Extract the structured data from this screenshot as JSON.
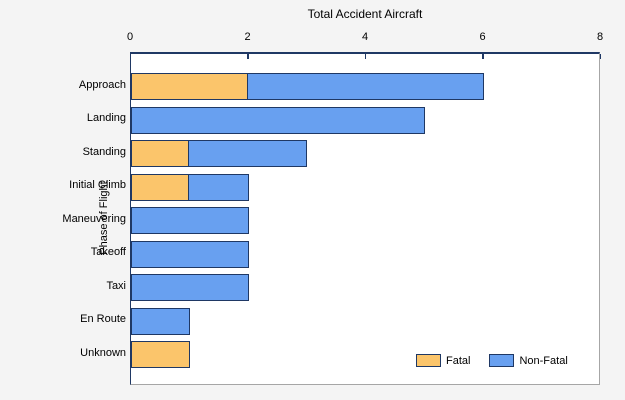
{
  "chart_data": {
    "type": "bar",
    "orientation": "horizontal",
    "stacked": true,
    "title": "Total Accident Aircraft",
    "xlabel": "Total Accident Aircraft",
    "ylabel": "Phase of Flight",
    "categories": [
      "Approach",
      "Landing",
      "Standing",
      "Initial Climb",
      "Maneuvering",
      "Takeoff",
      "Taxi",
      "En Route",
      "Unknown"
    ],
    "series": [
      {
        "name": "Fatal",
        "color": "#FBC56B",
        "values": [
          2,
          0,
          1,
          1,
          0,
          0,
          0,
          0,
          1
        ]
      },
      {
        "name": "Non-Fatal",
        "color": "#68A0F0",
        "values": [
          4,
          5,
          2,
          1,
          2,
          2,
          2,
          1,
          0
        ]
      }
    ],
    "totals": [
      6,
      5,
      3,
      2,
      2,
      2,
      2,
      1,
      1
    ],
    "xlim": [
      0,
      8
    ],
    "xticks": [
      0,
      2,
      4,
      6,
      8
    ],
    "grid": false,
    "legend_position": "bottom-right",
    "colors": {
      "bar_border": "#1F3864",
      "axis_line": "#1F3864",
      "panel_border": "#A6A6A6",
      "plot_background": "#FFFFFF",
      "chart_background": "#F4F4F4",
      "text": "#000000"
    }
  }
}
